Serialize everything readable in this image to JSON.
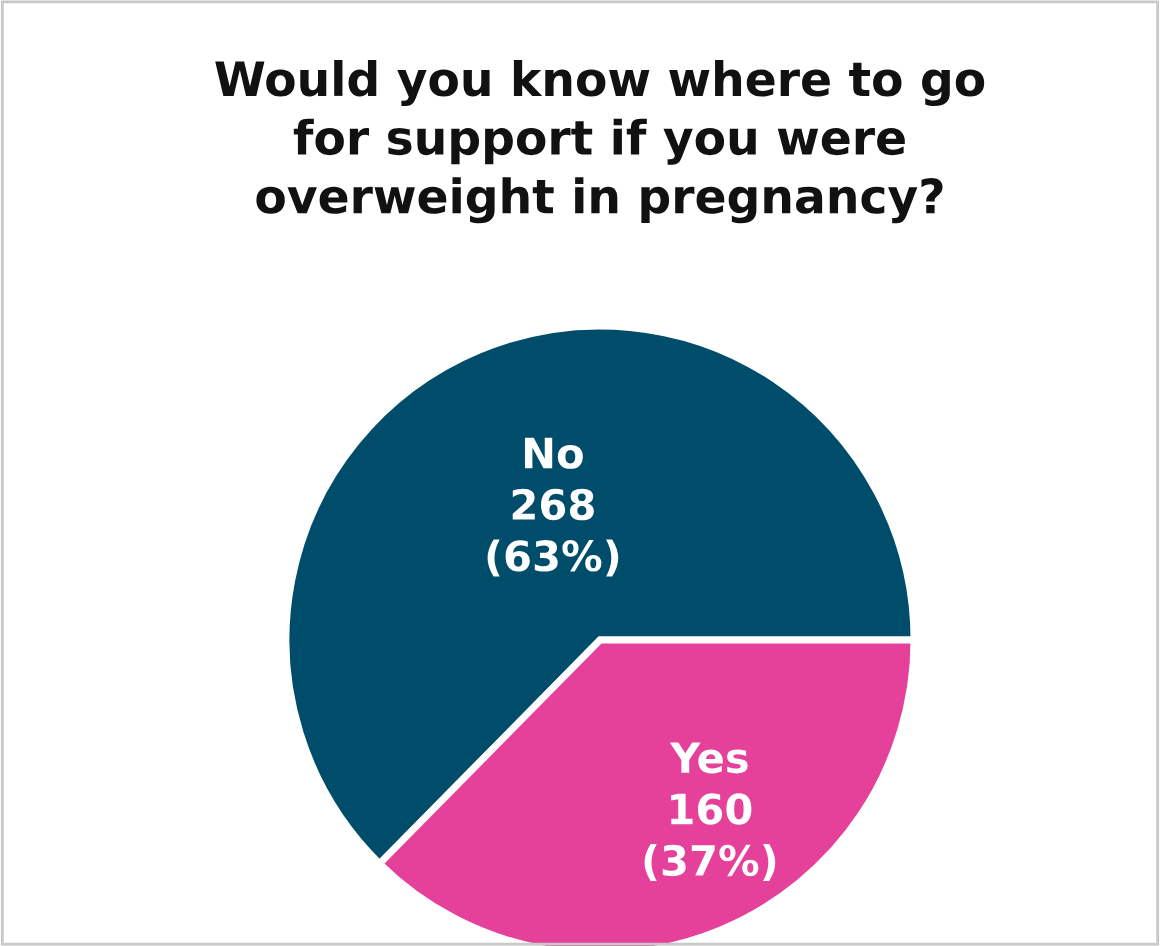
{
  "chart_data": {
    "type": "pie",
    "title": "Would you know where to go\nfor support if you were\noverweight in pregnancy?",
    "categories": [
      "No",
      "Yes"
    ],
    "values": [
      268,
      160
    ],
    "colors": [
      "#004d6b",
      "#e5409a"
    ],
    "value_labels": [
      "268\n(63%)",
      "160\n(37%)"
    ]
  }
}
